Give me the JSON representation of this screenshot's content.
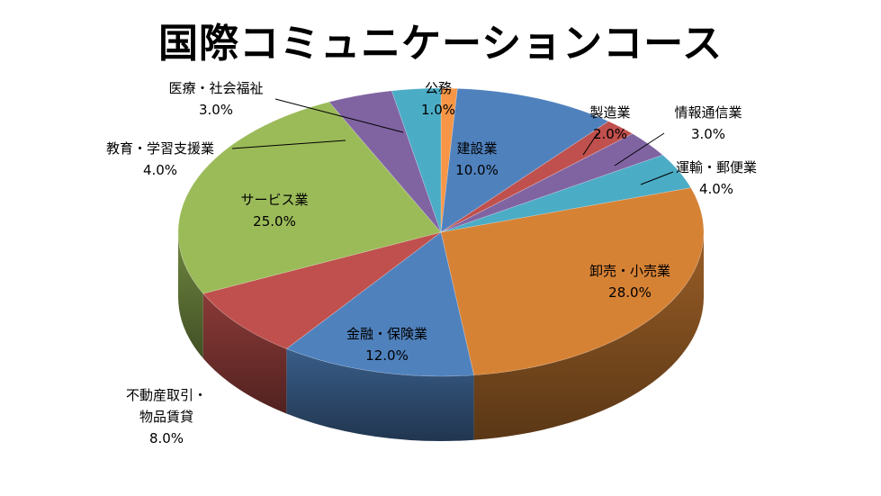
{
  "chart_data": {
    "type": "pie",
    "title": "国際コミュニケーションコース",
    "slices": [
      {
        "label": "公務",
        "label_lines": [
          "公務"
        ],
        "value": 1.0,
        "value_label": "1.0%",
        "color": "#F79646"
      },
      {
        "label": "建設業",
        "label_lines": [
          "建設業"
        ],
        "value": 10.0,
        "value_label": "10.0%",
        "color": "#4F81BD"
      },
      {
        "label": "製造業",
        "label_lines": [
          "製造業"
        ],
        "value": 2.0,
        "value_label": "2.0%",
        "color": "#C0504D"
      },
      {
        "label": "情報通信業",
        "label_lines": [
          "情報通信業"
        ],
        "value": 3.0,
        "value_label": "3.0%",
        "color": "#8064A2"
      },
      {
        "label": "運輸・郵便業",
        "label_lines": [
          "運輸・郵便業"
        ],
        "value": 4.0,
        "value_label": "4.0%",
        "color": "#4BACC6"
      },
      {
        "label": "卸売・小売業",
        "label_lines": [
          "卸売・小売業"
        ],
        "value": 28.0,
        "value_label": "28.0%",
        "color": "#D68235"
      },
      {
        "label": "金融・保険業",
        "label_lines": [
          "金融・保険業"
        ],
        "value": 12.0,
        "value_label": "12.0%",
        "color": "#4F81BD"
      },
      {
        "label": "不動産取引・物品賃貸",
        "label_lines": [
          "不動産取引・",
          "物品賃貸"
        ],
        "value": 8.0,
        "value_label": "8.0%",
        "color": "#C0504D"
      },
      {
        "label": "サービス業",
        "label_lines": [
          "サービス業"
        ],
        "value": 25.0,
        "value_label": "25.0%",
        "color": "#9BBB59"
      },
      {
        "label": "教育・学習支援業",
        "label_lines": [
          "教育・学習支援業"
        ],
        "value": 4.0,
        "value_label": "4.0%",
        "color": "#8064A2"
      },
      {
        "label": "医療・社会福祉",
        "label_lines": [
          "医療・社会福祉"
        ],
        "value": 3.0,
        "value_label": "3.0%",
        "color": "#4BACC6"
      }
    ]
  }
}
